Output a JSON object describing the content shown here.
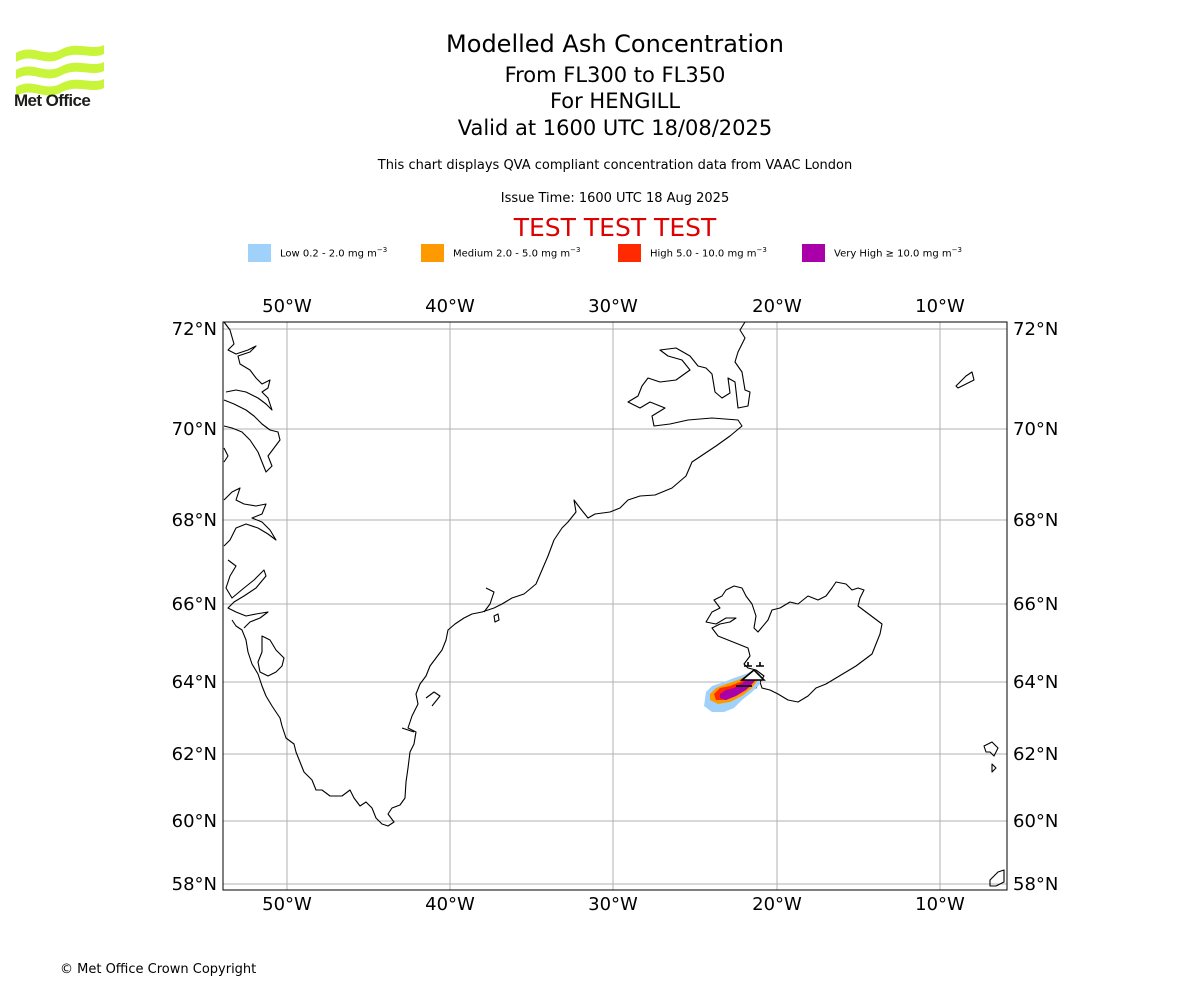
{
  "logo": {
    "text": "Met Office",
    "color": "#c8f53a"
  },
  "titles": {
    "title": "Modelled Ash Concentration",
    "levels": "From FL300 to FL350",
    "volcano": "For HENGILL",
    "valid": "Valid at 1600 UTC 18/08/2025",
    "note": "This chart displays QVA compliant concentration data from VAAC London",
    "issue": "Issue Time: 1600 UTC 18 Aug 2025",
    "test_banner": "TEST TEST TEST",
    "test_color": "#dd0000"
  },
  "legend": [
    {
      "label": "Low 0.2 - 2.0 mg m",
      "unit_exp": "−3",
      "color": "#9fd1fb"
    },
    {
      "label": "Medium 2.0 - 5.0 mg m",
      "unit_exp": "−3",
      "color": "#ff9900"
    },
    {
      "label": "High 5.0 - 10.0 mg m",
      "unit_exp": "−3",
      "color": "#ff2a00"
    },
    {
      "label": "Very High ≥ 10.0 mg m",
      "unit_exp": "−3",
      "color": "#aa00aa"
    }
  ],
  "map": {
    "lon_ticks": [
      "50°W",
      "40°W",
      "30°W",
      "20°W",
      "10°W"
    ],
    "lat_ticks": [
      "72°N",
      "70°N",
      "68°N",
      "66°N",
      "64°N",
      "62°N",
      "60°N",
      "58°N"
    ],
    "grid": true,
    "projection": "mercator"
  },
  "footer": {
    "copyright": "© Met Office Crown Copyright"
  }
}
